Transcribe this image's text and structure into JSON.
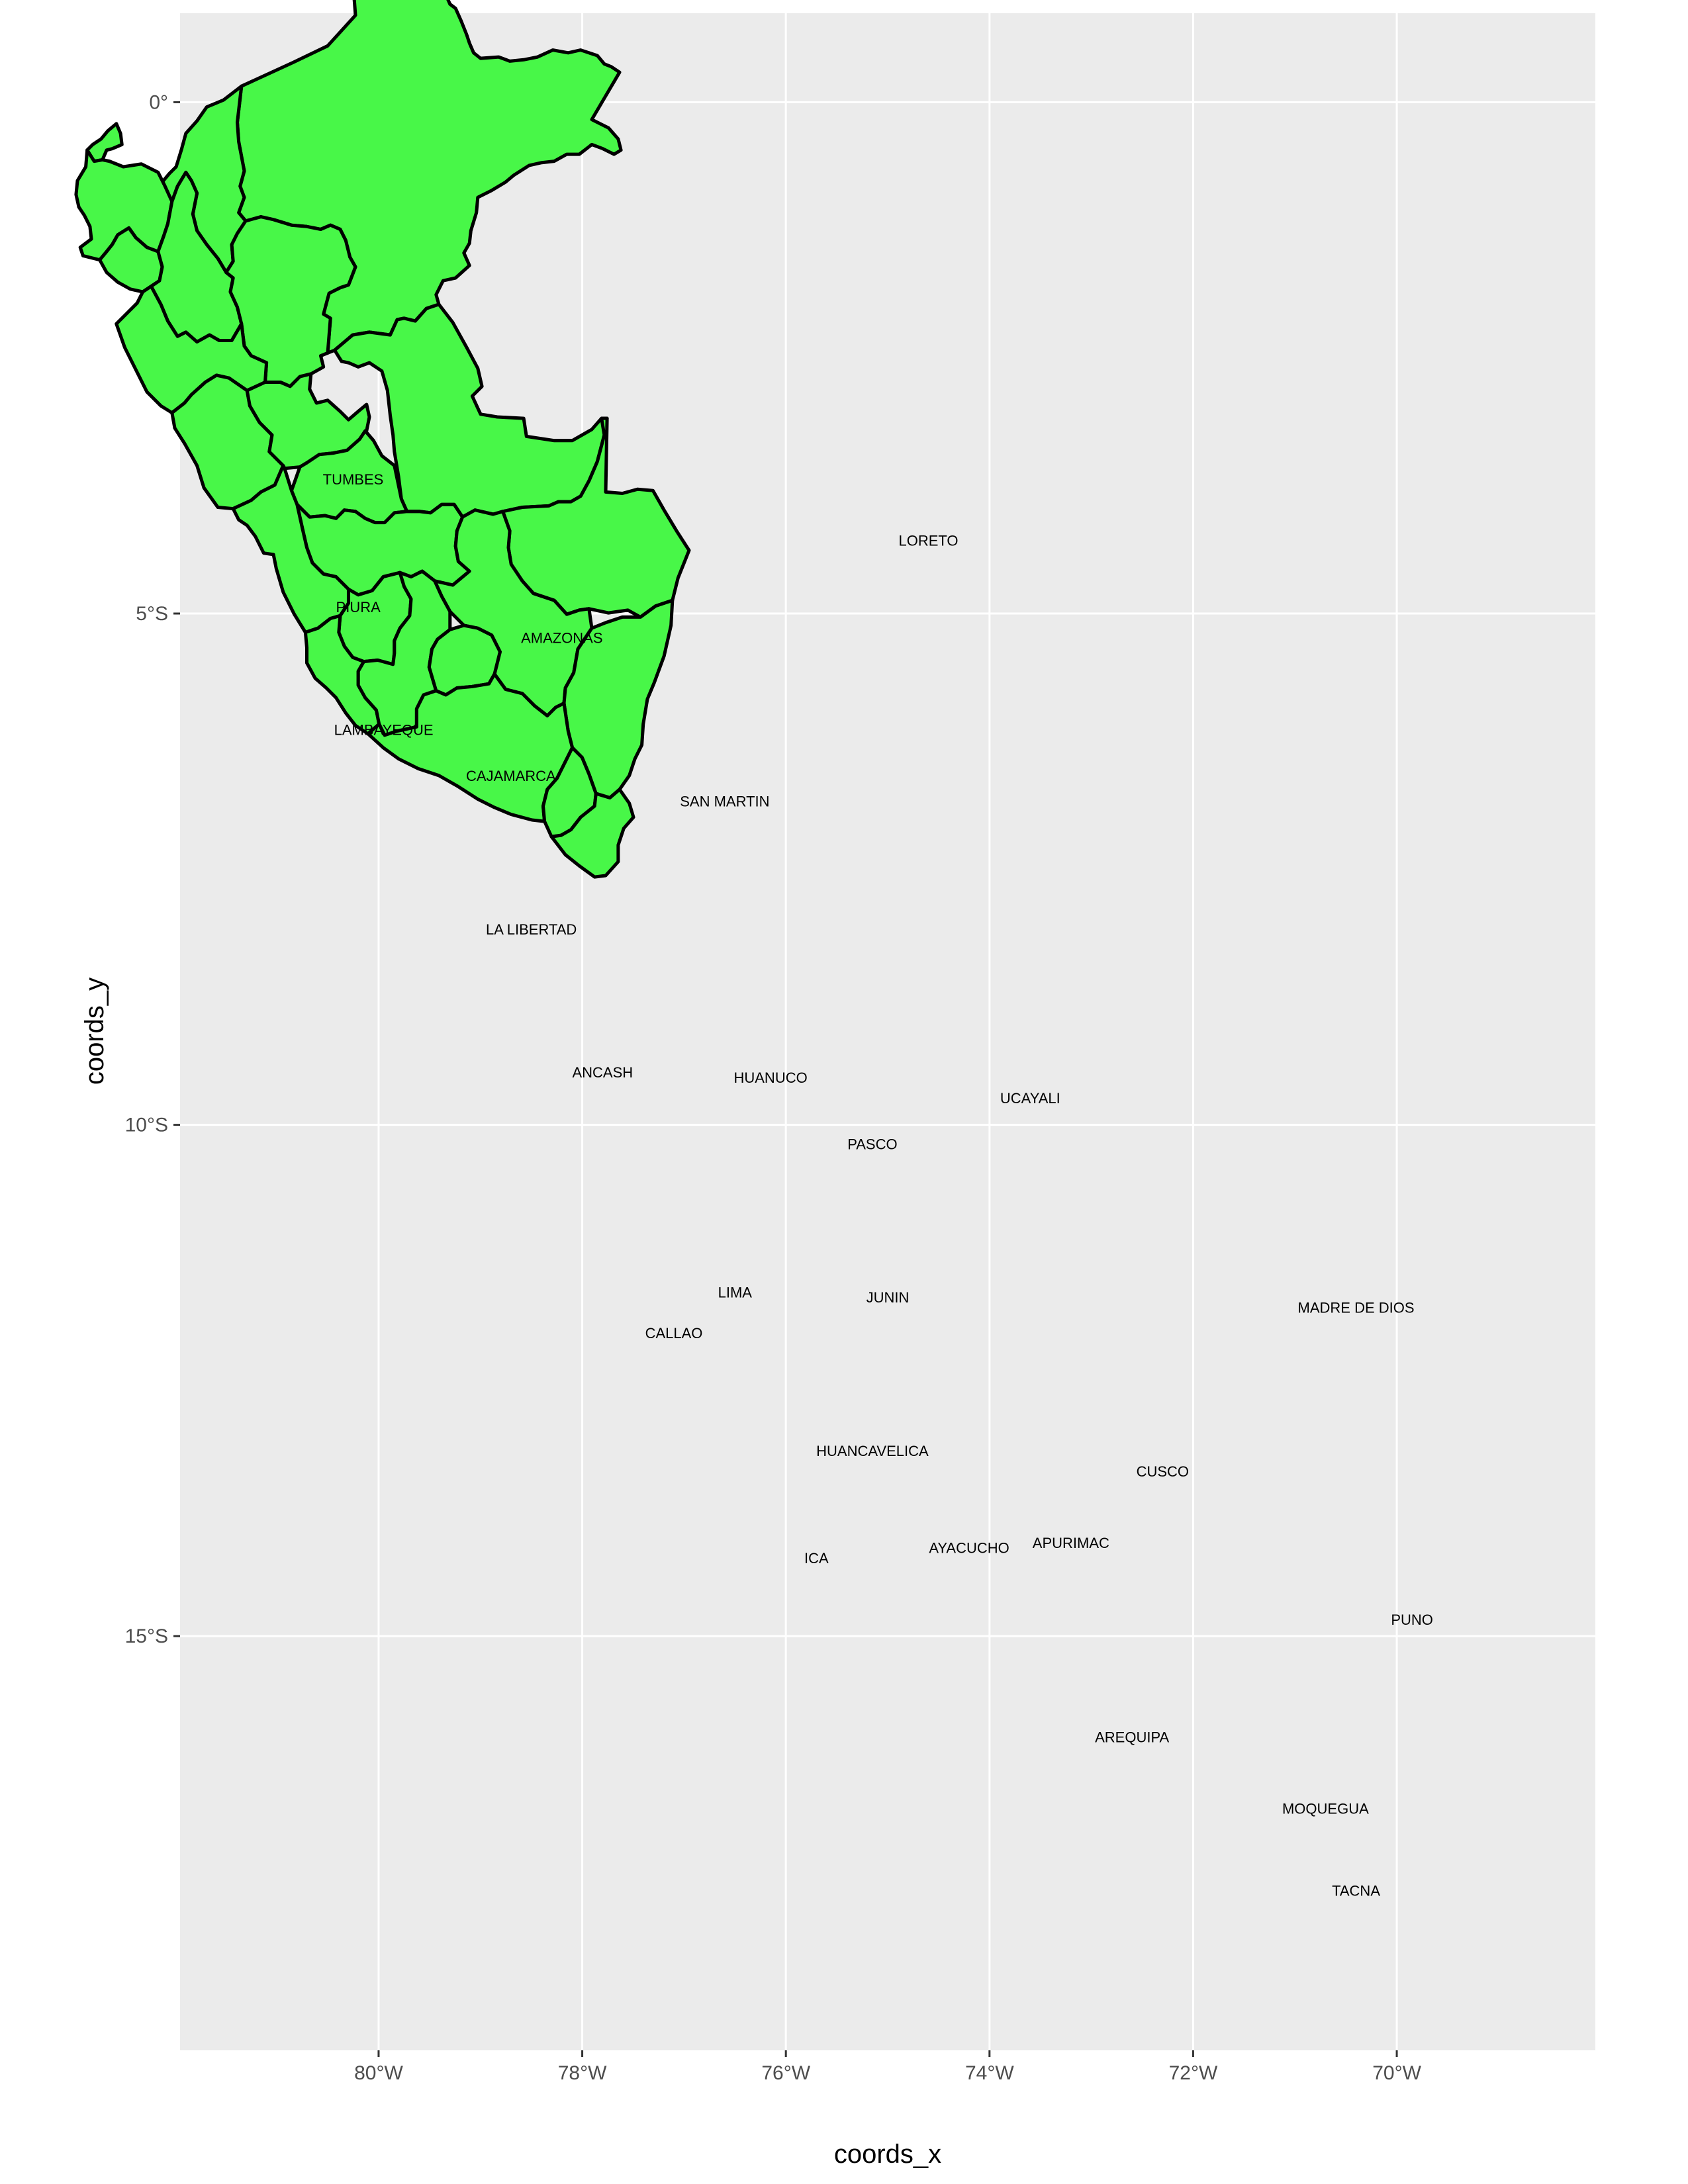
{
  "map": {
    "panel_background": "#ebebeb",
    "grid_color": "#ffffff",
    "fill_color": "#48f748",
    "border_color": "#000000",
    "x_axis_title": "coords_x",
    "y_axis_title": "coords_y",
    "x_ticks": [
      {
        "lon": -80,
        "label": "80°W"
      },
      {
        "lon": -78,
        "label": "78°W"
      },
      {
        "lon": -76,
        "label": "76°W"
      },
      {
        "lon": -74,
        "label": "74°W"
      },
      {
        "lon": -72,
        "label": "72°W"
      },
      {
        "lon": -70,
        "label": "70°W"
      }
    ],
    "y_ticks": [
      {
        "lat": 0,
        "label": "0°"
      },
      {
        "lat": -5,
        "label": "5°S"
      },
      {
        "lat": -10,
        "label": "10°S"
      },
      {
        "lat": -15,
        "label": "15°S"
      }
    ],
    "x_range": [
      -81.95,
      -68.05
    ],
    "y_range": [
      -19.05,
      0.87
    ],
    "regions": [
      {
        "name": "TUMBES",
        "lon": -80.25,
        "lat": -3.7
      },
      {
        "name": "PIURA",
        "lon": -80.2,
        "lat": -4.95
      },
      {
        "name": "LAMBAYEQUE",
        "lon": -79.95,
        "lat": -6.15
      },
      {
        "name": "CAJAMARCA",
        "lon": -78.7,
        "lat": -6.6
      },
      {
        "name": "AMAZONAS",
        "lon": -78.2,
        "lat": -5.25
      },
      {
        "name": "LORETO",
        "lon": -74.6,
        "lat": -4.3
      },
      {
        "name": "SAN MARTIN",
        "lon": -76.6,
        "lat": -6.85
      },
      {
        "name": "LA LIBERTAD",
        "lon": -78.5,
        "lat": -8.1
      },
      {
        "name": "ANCASH",
        "lon": -77.8,
        "lat": -9.5
      },
      {
        "name": "HUANUCO",
        "lon": -76.15,
        "lat": -9.55
      },
      {
        "name": "UCAYALI",
        "lon": -73.6,
        "lat": -9.75
      },
      {
        "name": "PASCO",
        "lon": -75.15,
        "lat": -10.2
      },
      {
        "name": "JUNIN",
        "lon": -75.0,
        "lat": -11.7
      },
      {
        "name": "LIMA",
        "lon": -76.5,
        "lat": -11.65
      },
      {
        "name": "CALLAO",
        "lon": -77.1,
        "lat": -12.05
      },
      {
        "name": "MADRE DE DIOS",
        "lon": -70.4,
        "lat": -11.8
      },
      {
        "name": "HUANCAVELICA",
        "lon": -75.15,
        "lat": -13.2
      },
      {
        "name": "CUSCO",
        "lon": -72.3,
        "lat": -13.4
      },
      {
        "name": "ICA",
        "lon": -75.7,
        "lat": -14.25
      },
      {
        "name": "AYACUCHO",
        "lon": -74.2,
        "lat": -14.15
      },
      {
        "name": "APURIMAC",
        "lon": -73.2,
        "lat": -14.1
      },
      {
        "name": "PUNO",
        "lon": -69.85,
        "lat": -14.85
      },
      {
        "name": "AREQUIPA",
        "lon": -72.6,
        "lat": -16.0
      },
      {
        "name": "MOQUEGUA",
        "lon": -70.7,
        "lat": -16.7
      },
      {
        "name": "TACNA",
        "lon": -70.4,
        "lat": -17.5
      }
    ]
  }
}
